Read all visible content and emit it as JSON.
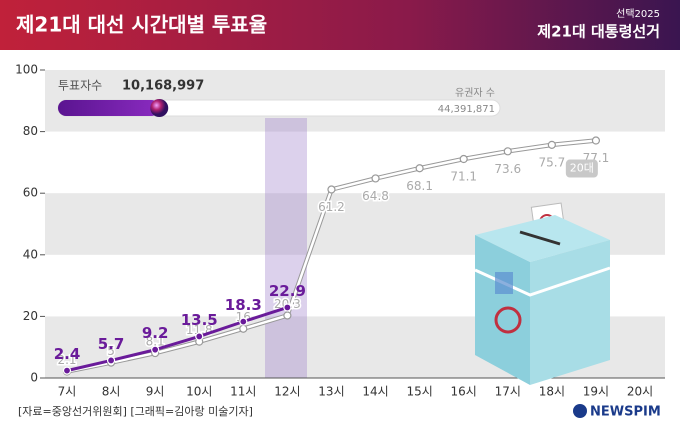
{
  "chart_data": {
    "type": "line",
    "title": "제21대 대선 시간대별 투표율",
    "logo_top": "선택2025",
    "logo": "제21대 대통령선거",
    "source": "[자료=중앙선거위원회] [그래픽=김아랑 미술기자]",
    "brand": "NEWSPIM",
    "voters_label": "투표자수",
    "voters": {
      "value": 10168997,
      "label": "10,168,997"
    },
    "electorate_label": "유권자 수",
    "electorate": {
      "value": 44391871,
      "label": "44,391,871"
    },
    "categories": [
      "7시",
      "8시",
      "9시",
      "10시",
      "11시",
      "12시",
      "13시",
      "14시",
      "15시",
      "16시",
      "17시",
      "18시",
      "19시",
      "20시"
    ],
    "series": [
      {
        "color": "#6a1b9a",
        "values": [
          2.4,
          5.7,
          9.2,
          13.5,
          18.3,
          22.9,
          null,
          null,
          null,
          null,
          null,
          null,
          null,
          null
        ]
      },
      {
        "name": "20대",
        "color": "#c8c8c8",
        "values": [
          2.1,
          5.0,
          8.1,
          11.8,
          16.0,
          20.3,
          61.2,
          64.8,
          68.1,
          71.1,
          73.6,
          75.7,
          77.1,
          null
        ]
      }
    ],
    "ylim": [
      0,
      100
    ],
    "yticks": [
      0,
      20,
      40,
      60,
      80,
      100
    ]
  }
}
